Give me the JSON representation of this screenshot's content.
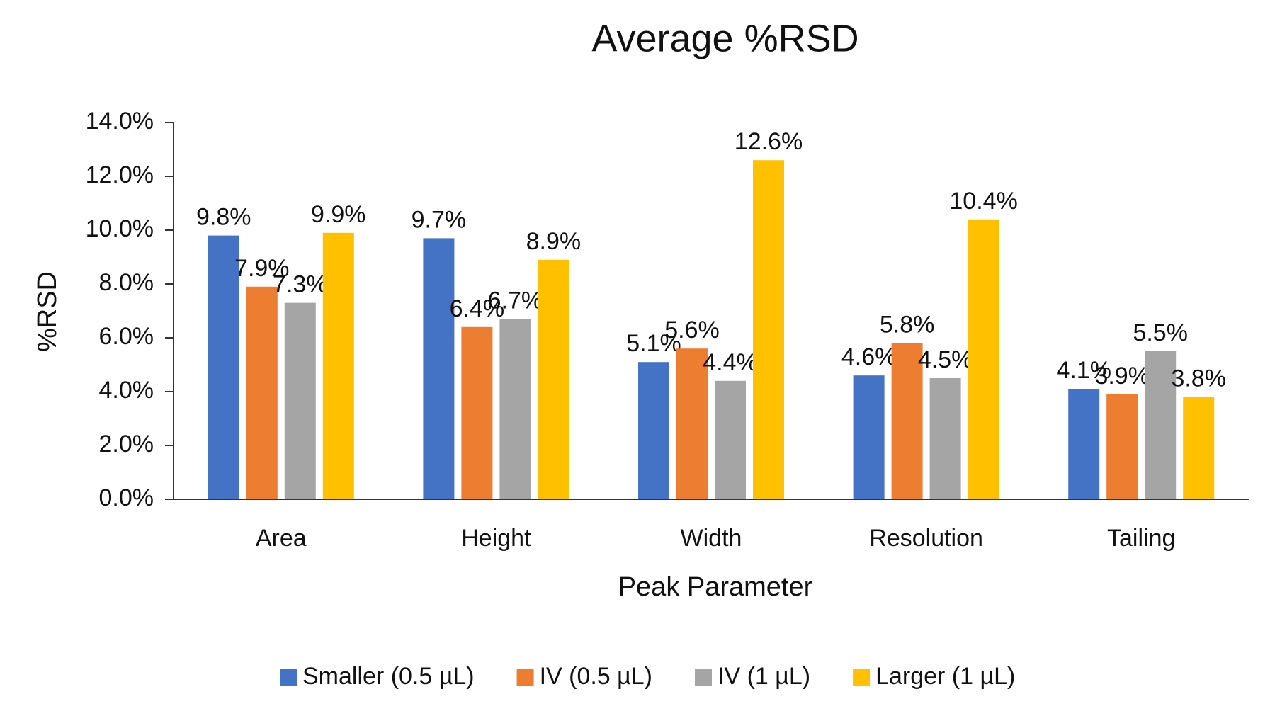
{
  "chart_data": {
    "type": "bar",
    "title": "Average %RSD",
    "x_label": "Peak Parameter",
    "y_label": "%RSD",
    "categories": [
      "Area",
      "Height",
      "Width",
      "Resolution",
      "Tailing"
    ],
    "series": [
      {
        "name": "Smaller (0.5 µL)",
        "color": "#4472c4",
        "values": [
          9.8,
          9.7,
          5.1,
          4.6,
          4.1
        ],
        "value_labels": [
          "9.8%",
          "9.7%",
          "5.1%",
          "4.6%",
          "4.1%"
        ]
      },
      {
        "name": "IV (0.5 µL)",
        "color": "#ed7d31",
        "values": [
          7.9,
          6.4,
          5.6,
          5.8,
          3.9
        ],
        "value_labels": [
          "7.9%",
          "6.4%",
          "5.6%",
          "5.8%",
          "3.9%"
        ]
      },
      {
        "name": "IV (1 µL)",
        "color": "#a5a5a5",
        "values": [
          7.3,
          6.7,
          4.4,
          4.5,
          5.5
        ],
        "value_labels": [
          "7.3%",
          "6.7%",
          "4.4%",
          "4.5%",
          "5.5%"
        ]
      },
      {
        "name": "Larger (1 µL)",
        "color": "#ffc000",
        "values": [
          9.9,
          8.9,
          12.6,
          10.4,
          3.8
        ],
        "value_labels": [
          "9.9%",
          "8.9%",
          "12.6%",
          "10.4%",
          "3.8%"
        ]
      }
    ],
    "ylim": [
      0,
      14
    ],
    "yticks": [
      {
        "value": 0,
        "label": "0.0%"
      },
      {
        "value": 2,
        "label": "2.0%"
      },
      {
        "value": 4,
        "label": "4.0%"
      },
      {
        "value": 6,
        "label": "6.0%"
      },
      {
        "value": 8,
        "label": "8.0%"
      },
      {
        "value": 10,
        "label": "10.0%"
      },
      {
        "value": 12,
        "label": "12.0%"
      },
      {
        "value": 14,
        "label": "14.0%"
      }
    ],
    "grid": false,
    "legend": "bottom"
  }
}
